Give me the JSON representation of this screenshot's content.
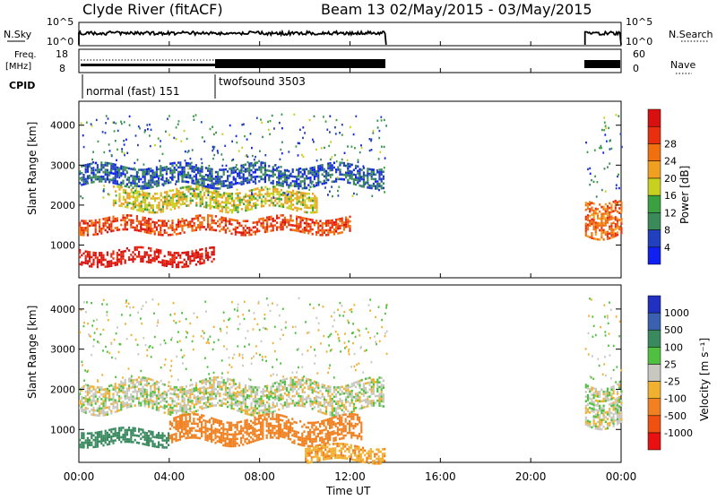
{
  "header": {
    "station": "Clyde River (fitACF)",
    "beam": "Beam 13 02/May/2015 - 03/May/2015"
  },
  "nsky": {
    "label": "N.Sky",
    "ytick_top": "10^5",
    "ytick_bottom": "10^0",
    "right_label": "N.Search",
    "right_tick_top": "10^5",
    "right_tick_bottom": "10^0"
  },
  "freq": {
    "label_line1": "Freq.",
    "label_line2": "[MHz]",
    "ytick_top": "18",
    "ytick_bottom": "8",
    "right_label": "Nave",
    "right_tick_top": "60",
    "right_tick_bottom": "0"
  },
  "cpid": {
    "label": "CPID",
    "mode1": "normal (fast) 151",
    "mode2": "twofsound 3503"
  },
  "power_panel": {
    "ylabel": "Slant Range [km]",
    "yticks": [
      "1000",
      "2000",
      "3000",
      "4000"
    ],
    "cbar_label": "Power [dB]",
    "cbar_ticks": [
      "4",
      "8",
      "12",
      "16",
      "20",
      "24",
      "28"
    ],
    "cbar_colors": [
      "#1020f0",
      "#2040c0",
      "#3a8a5a",
      "#3aa040",
      "#c8d020",
      "#f0a020",
      "#f07010",
      "#e83010",
      "#d81010"
    ]
  },
  "velocity_panel": {
    "ylabel": "Slant Range [km]",
    "yticks": [
      "1000",
      "2000",
      "3000",
      "4000"
    ],
    "cbar_label": "Velocity [m s⁻¹]",
    "cbar_ticks": [
      "-1000",
      "-500",
      "-100",
      "-25",
      "25",
      "100",
      "500",
      "1000"
    ],
    "cbar_colors": [
      "#e81010",
      "#f05010",
      "#f08020",
      "#f0b030",
      "#c8c8c0",
      "#50c040",
      "#3a8a60",
      "#3a60b0",
      "#2030c0"
    ]
  },
  "xaxis": {
    "ticks": [
      "00:00",
      "04:00",
      "08:00",
      "12:00",
      "16:00",
      "20:00",
      "00:00"
    ],
    "label": "Time UT"
  },
  "chart_data": {
    "type": "heatmap",
    "title": "Clyde River (fitACF) Beam 13 02/May/2015 - 03/May/2015",
    "xlabel": "Time UT",
    "ylabel": "Slant Range [km]",
    "xlim_hours": [
      0,
      24
    ],
    "ylim_km": [
      180,
      4600
    ],
    "data_coverage_hours": [
      [
        0.0,
        13.6
      ],
      [
        22.4,
        24.0
      ]
    ],
    "cpid_modes": [
      {
        "name": "normal (fast)",
        "cpid": 151,
        "start_hour": 0.0,
        "end_hour": 6.0
      },
      {
        "name": "twofsound",
        "cpid": 3503,
        "start_hour": 6.0,
        "end_hour": 13.6
      }
    ],
    "power_db_range": [
      0,
      30
    ],
    "velocity_range_ms": [
      -1000,
      1000
    ],
    "power_bands": [
      {
        "start_hour": 0.0,
        "end_hour": 6.0,
        "range_km": [
          500,
          900
        ],
        "power_db": 28
      },
      {
        "start_hour": 0.0,
        "end_hour": 12.0,
        "range_km": [
          1300,
          1700
        ],
        "power_db": 24
      },
      {
        "start_hour": 1.5,
        "end_hour": 10.5,
        "range_km": [
          1900,
          2400
        ],
        "power_db": 16
      },
      {
        "start_hour": 0.0,
        "end_hour": 13.5,
        "range_km": [
          2500,
          3000
        ],
        "power_db": 6
      },
      {
        "start_hour": 22.4,
        "end_hour": 24.0,
        "range_km": [
          1300,
          2200
        ],
        "power_db": 22
      }
    ],
    "velocity_bands": [
      {
        "start_hour": 0.0,
        "end_hour": 13.5,
        "range_km": [
          1500,
          2200
        ],
        "velocity_ms": 0
      },
      {
        "start_hour": 0.0,
        "end_hour": 4.0,
        "range_km": [
          600,
          1000
        ],
        "velocity_ms": 150
      },
      {
        "start_hour": 4.0,
        "end_hour": 12.5,
        "range_km": [
          700,
          1300
        ],
        "velocity_ms": -150
      },
      {
        "start_hour": 10.0,
        "end_hour": 13.5,
        "range_km": [
          200,
          600
        ],
        "velocity_ms": -80
      },
      {
        "start_hour": 22.4,
        "end_hour": 24.0,
        "range_km": [
          1200,
          2200
        ],
        "velocity_ms": 0
      }
    ]
  }
}
